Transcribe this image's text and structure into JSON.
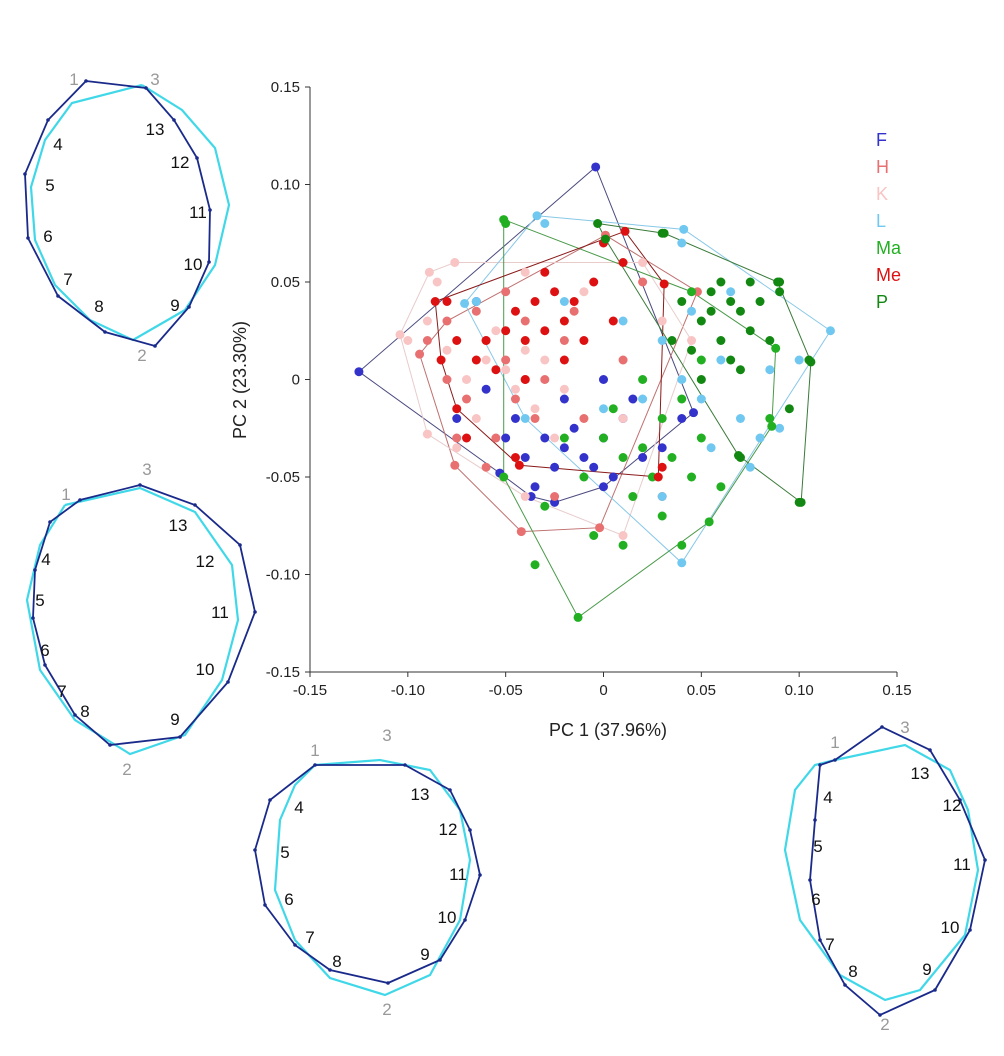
{
  "chart_data": {
    "type": "scatter",
    "title": "",
    "xlabel": "PC 1 (37.96%)",
    "ylabel": "PC 2 (23.30%)",
    "xlim": [
      -0.15,
      0.15
    ],
    "ylim": [
      -0.15,
      0.15
    ],
    "xticks": [
      "-0.15",
      "-0.10",
      "-0.05",
      "0",
      "0.05",
      "0.10",
      "0.15"
    ],
    "yticks": [
      "0.15",
      "0.10",
      "0.05",
      "0",
      "-0.05",
      "-0.10",
      "-0.15"
    ],
    "xtick_values": [
      -0.15,
      -0.1,
      -0.05,
      0,
      0.05,
      0.1,
      0.15
    ],
    "ytick_values": [
      0.15,
      0.1,
      0.05,
      0,
      -0.05,
      -0.1,
      -0.15
    ],
    "grid": false,
    "legend_position": "top-right",
    "series": [
      {
        "name": "F",
        "color": "#3333cc",
        "line": "#4a4a80",
        "hull": [
          [
            -0.125,
            0.004
          ],
          [
            -0.004,
            0.109
          ],
          [
            0.046,
            -0.017
          ],
          [
            0.0,
            -0.055
          ],
          [
            -0.025,
            -0.063
          ],
          [
            -0.037,
            -0.06
          ],
          [
            -0.053,
            -0.048
          ]
        ],
        "points": [
          [
            -0.03,
            -0.03
          ],
          [
            -0.02,
            -0.035
          ],
          [
            -0.01,
            -0.04
          ],
          [
            0.0,
            -0.03
          ],
          [
            0.01,
            -0.02
          ],
          [
            -0.015,
            -0.025
          ],
          [
            -0.025,
            -0.045
          ],
          [
            -0.04,
            -0.04
          ],
          [
            -0.05,
            -0.03
          ],
          [
            0.02,
            -0.04
          ],
          [
            -0.005,
            -0.045
          ],
          [
            0.015,
            -0.01
          ],
          [
            -0.06,
            -0.005
          ],
          [
            -0.075,
            -0.02
          ],
          [
            -0.065,
            0.04
          ],
          [
            -0.035,
            -0.055
          ],
          [
            0.03,
            -0.035
          ],
          [
            -0.045,
            -0.02
          ],
          [
            0.005,
            -0.05
          ],
          [
            0.04,
            -0.02
          ],
          [
            -0.02,
            -0.01
          ],
          [
            0.0,
            0.0
          ]
        ]
      },
      {
        "name": "H",
        "color": "#e87070",
        "line": "#c07070",
        "hull": [
          [
            -0.094,
            0.013
          ],
          [
            -0.08,
            0.03
          ],
          [
            0.001,
            0.074
          ],
          [
            0.048,
            0.045
          ],
          [
            -0.002,
            -0.076
          ],
          [
            -0.042,
            -0.078
          ],
          [
            -0.076,
            -0.044
          ]
        ],
        "points": [
          [
            -0.08,
            0.0
          ],
          [
            -0.07,
            -0.01
          ],
          [
            -0.06,
            0.02
          ],
          [
            -0.05,
            0.01
          ],
          [
            -0.045,
            -0.01
          ],
          [
            -0.04,
            0.03
          ],
          [
            -0.03,
            0.0
          ],
          [
            -0.055,
            -0.03
          ],
          [
            -0.065,
            0.035
          ],
          [
            -0.02,
            0.02
          ],
          [
            -0.035,
            -0.02
          ],
          [
            -0.075,
            -0.03
          ],
          [
            -0.01,
            -0.02
          ],
          [
            0.01,
            0.01
          ],
          [
            -0.025,
            -0.06
          ],
          [
            -0.09,
            0.02
          ],
          [
            -0.05,
            0.045
          ],
          [
            0.02,
            0.05
          ],
          [
            -0.015,
            0.035
          ],
          [
            -0.06,
            -0.045
          ],
          [
            0.03,
            -0.06
          ],
          [
            -0.04,
            0.0
          ]
        ]
      },
      {
        "name": "K",
        "color": "#f8c4c4",
        "line": "#e8cccc",
        "hull": [
          [
            -0.104,
            0.023
          ],
          [
            -0.089,
            0.055
          ],
          [
            -0.076,
            0.06
          ],
          [
            0.02,
            0.06
          ],
          [
            0.045,
            0.02
          ],
          [
            0.01,
            -0.08
          ],
          [
            -0.04,
            -0.06
          ],
          [
            -0.09,
            -0.028
          ]
        ],
        "points": [
          [
            -0.09,
            0.03
          ],
          [
            -0.08,
            0.015
          ],
          [
            -0.07,
            0.0
          ],
          [
            -0.06,
            0.01
          ],
          [
            -0.05,
            0.005
          ],
          [
            -0.04,
            0.015
          ],
          [
            -0.045,
            -0.005
          ],
          [
            -0.03,
            0.01
          ],
          [
            -0.055,
            0.025
          ],
          [
            -0.035,
            -0.015
          ],
          [
            -0.065,
            -0.02
          ],
          [
            -0.075,
            -0.035
          ],
          [
            -0.02,
            -0.005
          ],
          [
            -0.01,
            0.045
          ],
          [
            0.01,
            -0.02
          ],
          [
            -0.085,
            0.05
          ],
          [
            -0.04,
            0.055
          ],
          [
            0.015,
            -0.06
          ],
          [
            -0.025,
            -0.03
          ],
          [
            -0.1,
            0.02
          ],
          [
            0.03,
            0.03
          ]
        ]
      },
      {
        "name": "L",
        "color": "#70c8f0",
        "line": "#88c8e8",
        "hull": [
          [
            -0.034,
            0.084
          ],
          [
            0.041,
            0.077
          ],
          [
            0.116,
            0.025
          ],
          [
            0.04,
            -0.094
          ],
          [
            -0.04,
            -0.02
          ],
          [
            -0.071,
            0.039
          ]
        ],
        "points": [
          [
            0.04,
            0.0
          ],
          [
            0.05,
            -0.01
          ],
          [
            0.06,
            0.01
          ],
          [
            0.07,
            -0.02
          ],
          [
            0.03,
            0.02
          ],
          [
            0.02,
            -0.01
          ],
          [
            0.08,
            -0.03
          ],
          [
            0.09,
            -0.025
          ],
          [
            0.045,
            0.035
          ],
          [
            0.065,
            0.045
          ],
          [
            0.01,
            0.03
          ],
          [
            -0.03,
            0.08
          ],
          [
            0.04,
            0.07
          ],
          [
            0.075,
            -0.045
          ],
          [
            0.03,
            -0.06
          ],
          [
            0.085,
            0.005
          ],
          [
            -0.02,
            0.04
          ],
          [
            0.055,
            -0.035
          ],
          [
            0.0,
            -0.015
          ],
          [
            0.1,
            0.01
          ],
          [
            -0.065,
            0.04
          ]
        ]
      },
      {
        "name": "Ma",
        "color": "#22b022",
        "line": "#4a9a4a",
        "hull": [
          [
            -0.051,
            0.082
          ],
          [
            0.045,
            0.045
          ],
          [
            0.088,
            0.016
          ],
          [
            0.086,
            -0.024
          ],
          [
            0.054,
            -0.073
          ],
          [
            -0.013,
            -0.122
          ],
          [
            -0.051,
            -0.05
          ]
        ],
        "points": [
          [
            0.0,
            -0.03
          ],
          [
            0.01,
            -0.04
          ],
          [
            0.02,
            -0.035
          ],
          [
            0.03,
            -0.02
          ],
          [
            0.025,
            -0.05
          ],
          [
            0.015,
            -0.06
          ],
          [
            0.035,
            -0.04
          ],
          [
            0.04,
            -0.01
          ],
          [
            0.005,
            -0.015
          ],
          [
            -0.01,
            -0.05
          ],
          [
            0.05,
            -0.03
          ],
          [
            0.045,
            -0.05
          ],
          [
            0.02,
            0.0
          ],
          [
            0.03,
            -0.07
          ],
          [
            0.06,
            -0.055
          ],
          [
            -0.02,
            -0.03
          ],
          [
            -0.03,
            -0.065
          ],
          [
            -0.035,
            -0.095
          ],
          [
            -0.005,
            -0.08
          ],
          [
            0.01,
            -0.085
          ],
          [
            0.04,
            -0.085
          ],
          [
            -0.05,
            0.08
          ],
          [
            0.085,
            -0.02
          ],
          [
            0.05,
            0.01
          ]
        ]
      },
      {
        "name": "Me",
        "color": "#dd1111",
        "line": "#8a1a1a",
        "hull": [
          [
            -0.086,
            0.04
          ],
          [
            0.011,
            0.076
          ],
          [
            0.031,
            0.049
          ],
          [
            0.028,
            -0.05
          ],
          [
            -0.043,
            -0.044
          ],
          [
            -0.075,
            -0.015
          ],
          [
            -0.083,
            0.01
          ]
        ],
        "points": [
          [
            -0.06,
            0.02
          ],
          [
            -0.05,
            0.025
          ],
          [
            -0.04,
            0.02
          ],
          [
            -0.03,
            0.025
          ],
          [
            -0.02,
            0.03
          ],
          [
            -0.01,
            0.02
          ],
          [
            -0.045,
            0.035
          ],
          [
            -0.035,
            0.04
          ],
          [
            -0.025,
            0.045
          ],
          [
            -0.015,
            0.04
          ],
          [
            -0.055,
            0.005
          ],
          [
            -0.065,
            0.01
          ],
          [
            -0.07,
            -0.03
          ],
          [
            -0.005,
            0.05
          ],
          [
            0.005,
            0.03
          ],
          [
            -0.04,
            0.0
          ],
          [
            -0.02,
            0.01
          ],
          [
            0.01,
            0.06
          ],
          [
            -0.075,
            0.02
          ],
          [
            0.03,
            -0.045
          ],
          [
            -0.08,
            0.04
          ],
          [
            0.0,
            0.07
          ],
          [
            -0.045,
            -0.04
          ],
          [
            -0.03,
            0.055
          ]
        ]
      },
      {
        "name": "P",
        "color": "#128812",
        "line": "#3a7a3a",
        "hull": [
          [
            -0.003,
            0.08
          ],
          [
            0.031,
            0.075
          ],
          [
            0.089,
            0.05
          ],
          [
            0.106,
            0.009
          ],
          [
            0.101,
            -0.063
          ],
          [
            0.069,
            -0.039
          ],
          [
            0.001,
            0.072
          ]
        ],
        "points": [
          [
            0.05,
            0.03
          ],
          [
            0.06,
            0.02
          ],
          [
            0.07,
            0.035
          ],
          [
            0.055,
            0.045
          ],
          [
            0.065,
            0.01
          ],
          [
            0.075,
            0.025
          ],
          [
            0.08,
            0.04
          ],
          [
            0.045,
            0.015
          ],
          [
            0.06,
            0.05
          ],
          [
            0.07,
            0.005
          ],
          [
            0.085,
            0.02
          ],
          [
            0.09,
            0.045
          ],
          [
            0.04,
            0.04
          ],
          [
            0.035,
            0.02
          ],
          [
            0.05,
            0.0
          ],
          [
            0.075,
            0.05
          ],
          [
            0.065,
            0.04
          ],
          [
            0.03,
            0.075
          ],
          [
            0.09,
            0.05
          ],
          [
            0.105,
            0.01
          ],
          [
            0.1,
            -0.063
          ],
          [
            0.07,
            -0.04
          ],
          [
            0.095,
            -0.015
          ],
          [
            0.055,
            0.035
          ]
        ]
      }
    ]
  },
  "landmark_labels": [
    "1",
    "2",
    "3",
    "4",
    "5",
    "6",
    "7",
    "8",
    "9",
    "10",
    "11",
    "12",
    "13"
  ]
}
